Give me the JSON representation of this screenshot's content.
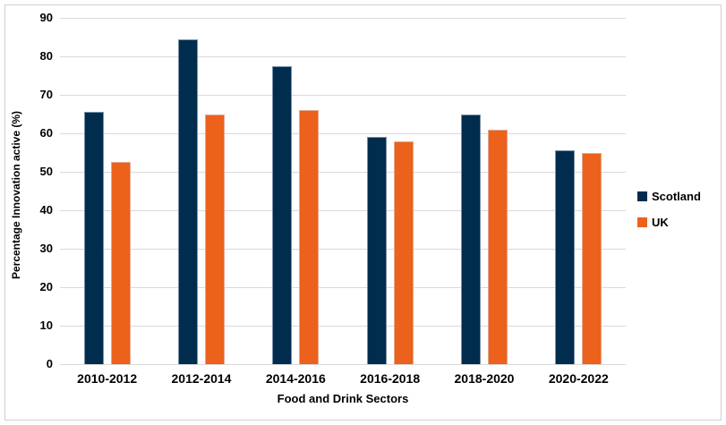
{
  "chart_data": {
    "type": "bar",
    "categories": [
      "2010-2012",
      "2012-2014",
      "2014-2016",
      "2016-2018",
      "2018-2020",
      "2020-2022"
    ],
    "series": [
      {
        "name": "Scotland",
        "color": "#002c4e",
        "values": [
          65.5,
          84.5,
          77.5,
          59,
          65,
          55.5
        ]
      },
      {
        "name": "UK",
        "color": "#ec611c",
        "values": [
          52.5,
          65,
          66,
          58,
          61,
          55
        ]
      }
    ],
    "title": "",
    "xlabel": "Food and Drink Sectors",
    "ylabel": "Percentage Innovation active (%)",
    "ylim": [
      0,
      90
    ],
    "ytick_step": 10,
    "yticks": [
      "0",
      "10",
      "20",
      "30",
      "40",
      "50",
      "60",
      "70",
      "80",
      "90"
    ],
    "grid": true,
    "legend_position": "right",
    "colors": {
      "gridline": "#d9d9d9",
      "frame_border": "#cfcfcf",
      "text": "#000000",
      "background": "#ffffff"
    }
  }
}
